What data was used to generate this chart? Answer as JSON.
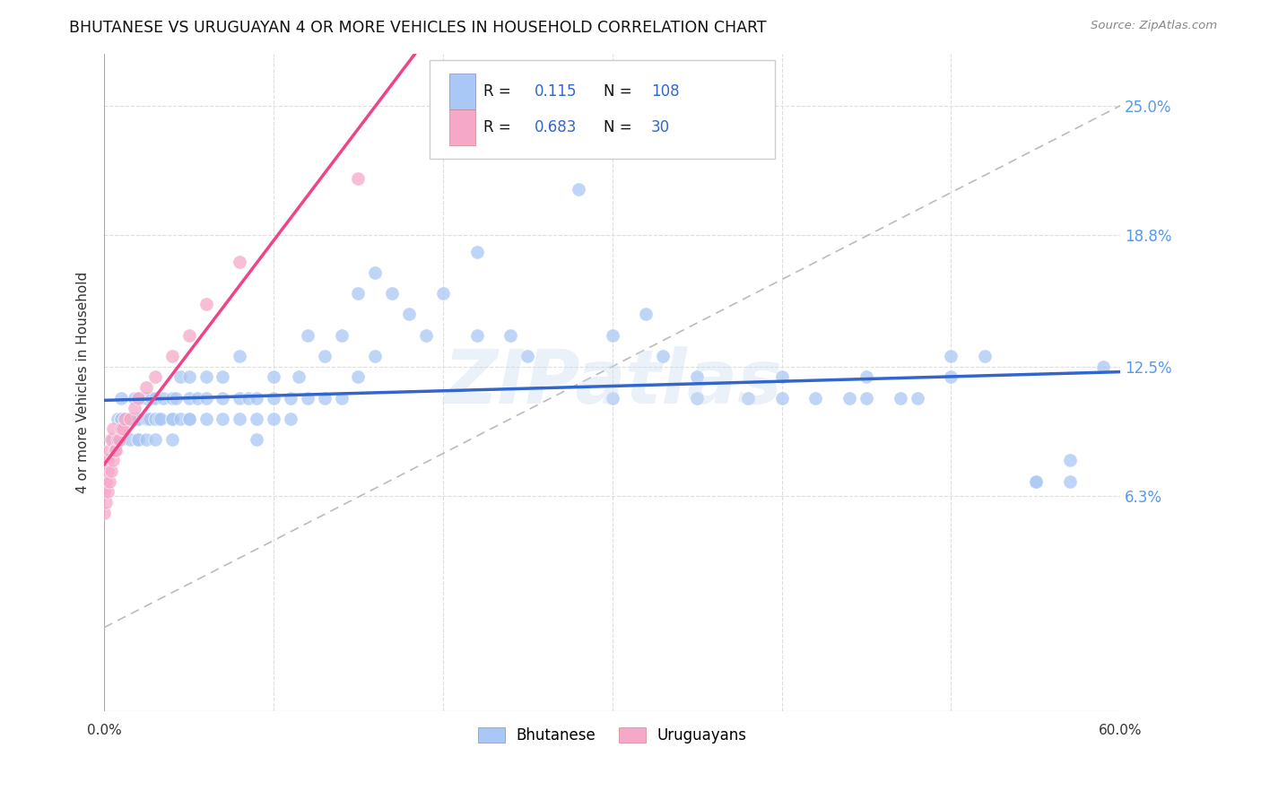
{
  "title": "BHUTANESE VS URUGUAYAN 4 OR MORE VEHICLES IN HOUSEHOLD CORRELATION CHART",
  "source": "Source: ZipAtlas.com",
  "ylabel": "4 or more Vehicles in Household",
  "ytick_labels": [
    "6.3%",
    "12.5%",
    "18.8%",
    "25.0%"
  ],
  "ytick_values": [
    0.063,
    0.125,
    0.188,
    0.25
  ],
  "xlim": [
    0.0,
    0.6
  ],
  "ylim": [
    -0.04,
    0.275
  ],
  "bhutanese_R": 0.115,
  "bhutanese_N": 108,
  "uruguayan_R": 0.683,
  "uruguayan_N": 30,
  "bhutanese_color": "#aac8f5",
  "uruguayan_color": "#f5a8c8",
  "bhutanese_line_color": "#3366cc",
  "uruguayan_line_color": "#ee4488",
  "diagonal_color": "#bbbbbb",
  "background_color": "#ffffff",
  "watermark": "ZIPatlas",
  "grid_color": "#dddddd",
  "bhutanese_x": [
    0.005,
    0.008,
    0.01,
    0.01,
    0.01,
    0.01,
    0.01,
    0.01,
    0.012,
    0.015,
    0.015,
    0.016,
    0.017,
    0.018,
    0.018,
    0.019,
    0.02,
    0.02,
    0.02,
    0.02,
    0.02,
    0.02,
    0.025,
    0.025,
    0.025,
    0.026,
    0.027,
    0.028,
    0.03,
    0.03,
    0.03,
    0.03,
    0.032,
    0.033,
    0.035,
    0.04,
    0.04,
    0.04,
    0.04,
    0.042,
    0.045,
    0.045,
    0.05,
    0.05,
    0.05,
    0.05,
    0.055,
    0.06,
    0.06,
    0.06,
    0.07,
    0.07,
    0.07,
    0.08,
    0.08,
    0.08,
    0.085,
    0.09,
    0.09,
    0.09,
    0.1,
    0.1,
    0.1,
    0.11,
    0.11,
    0.115,
    0.12,
    0.12,
    0.13,
    0.13,
    0.14,
    0.14,
    0.15,
    0.15,
    0.16,
    0.16,
    0.17,
    0.18,
    0.19,
    0.2,
    0.22,
    0.22,
    0.24,
    0.25,
    0.28,
    0.3,
    0.32,
    0.33,
    0.35,
    0.38,
    0.4,
    0.42,
    0.44,
    0.45,
    0.47,
    0.48,
    0.5,
    0.52,
    0.55,
    0.57,
    0.3,
    0.35,
    0.4,
    0.45,
    0.5,
    0.55,
    0.57,
    0.59
  ],
  "bhutanese_y": [
    0.09,
    0.1,
    0.09,
    0.09,
    0.1,
    0.1,
    0.1,
    0.11,
    0.1,
    0.09,
    0.1,
    0.1,
    0.1,
    0.1,
    0.11,
    0.1,
    0.09,
    0.09,
    0.1,
    0.1,
    0.1,
    0.11,
    0.09,
    0.1,
    0.11,
    0.1,
    0.1,
    0.11,
    0.09,
    0.1,
    0.1,
    0.11,
    0.1,
    0.1,
    0.11,
    0.09,
    0.1,
    0.1,
    0.11,
    0.11,
    0.1,
    0.12,
    0.1,
    0.1,
    0.11,
    0.12,
    0.11,
    0.1,
    0.11,
    0.12,
    0.1,
    0.11,
    0.12,
    0.1,
    0.11,
    0.13,
    0.11,
    0.09,
    0.1,
    0.11,
    0.1,
    0.11,
    0.12,
    0.1,
    0.11,
    0.12,
    0.11,
    0.14,
    0.11,
    0.13,
    0.11,
    0.14,
    0.12,
    0.16,
    0.13,
    0.17,
    0.16,
    0.15,
    0.14,
    0.16,
    0.14,
    0.18,
    0.14,
    0.13,
    0.21,
    0.14,
    0.15,
    0.13,
    0.12,
    0.11,
    0.12,
    0.11,
    0.11,
    0.12,
    0.11,
    0.11,
    0.12,
    0.13,
    0.07,
    0.08,
    0.11,
    0.11,
    0.11,
    0.11,
    0.13,
    0.07,
    0.07,
    0.125
  ],
  "uruguayan_x": [
    0.0,
    0.0,
    0.001,
    0.001,
    0.002,
    0.002,
    0.002,
    0.003,
    0.003,
    0.004,
    0.004,
    0.005,
    0.005,
    0.006,
    0.007,
    0.008,
    0.009,
    0.01,
    0.011,
    0.012,
    0.015,
    0.018,
    0.02,
    0.025,
    0.03,
    0.04,
    0.05,
    0.06,
    0.08,
    0.15
  ],
  "uruguayan_y": [
    0.055,
    0.065,
    0.06,
    0.07,
    0.065,
    0.075,
    0.08,
    0.07,
    0.085,
    0.075,
    0.09,
    0.08,
    0.095,
    0.085,
    0.085,
    0.09,
    0.09,
    0.095,
    0.095,
    0.1,
    0.1,
    0.105,
    0.11,
    0.115,
    0.12,
    0.13,
    0.14,
    0.155,
    0.175,
    0.215
  ],
  "bhutanese_line_start_y": 0.098,
  "bhutanese_line_end_y": 0.125,
  "uruguayan_line_start_y": 0.058,
  "uruguayan_line_end_y": 0.215,
  "uruguayan_line_end_x": 0.2
}
